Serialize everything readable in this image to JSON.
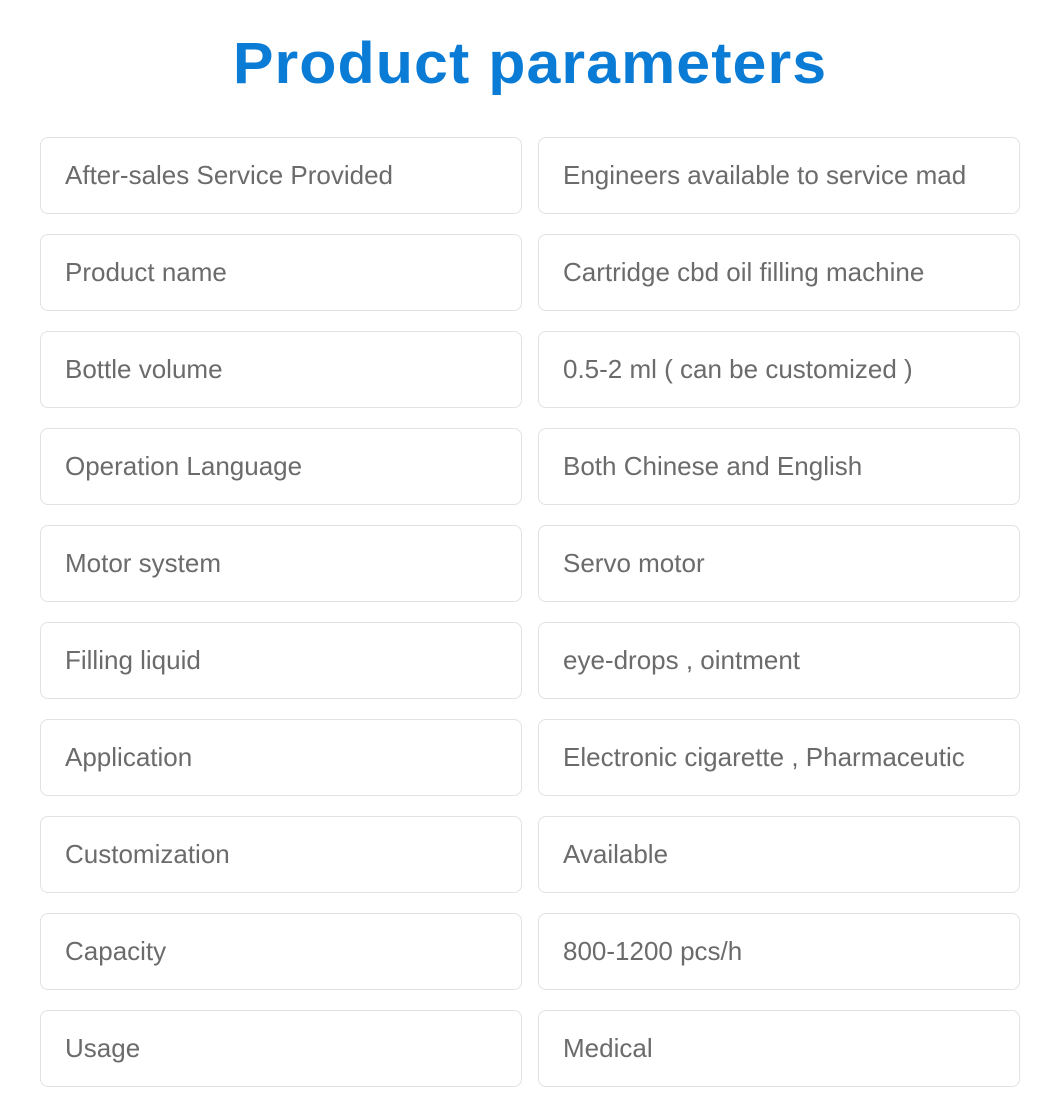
{
  "title": "Product parameters",
  "styling": {
    "title_color": "#0b7cd6",
    "title_fontsize": 58,
    "title_fontweight": 900,
    "cell_border_color": "#e2e2e2",
    "cell_border_radius": 8,
    "cell_text_color": "#6b6b6b",
    "cell_fontsize": 26,
    "cell_background": "#ffffff",
    "row_gap": 20,
    "col_gap": 16,
    "page_background": "#ffffff"
  },
  "parameters": [
    {
      "label": "After-sales Service Provided",
      "value": "Engineers available to service mad"
    },
    {
      "label": "Product name",
      "value": "Cartridge cbd oil filling machine"
    },
    {
      "label": "Bottle volume",
      "value": "0.5-2 ml ( can be customized )"
    },
    {
      "label": "Operation Language",
      "value": "Both Chinese and English"
    },
    {
      "label": "Motor system",
      "value": "Servo motor"
    },
    {
      "label": "Filling liquid",
      "value": "eye-drops , ointment"
    },
    {
      "label": "Application",
      "value": "Electronic cigarette , Pharmaceutic"
    },
    {
      "label": "Customization",
      "value": "Available"
    },
    {
      "label": "Capacity",
      "value": "800-1200 pcs/h"
    },
    {
      "label": "Usage",
      "value": "Medical"
    }
  ]
}
